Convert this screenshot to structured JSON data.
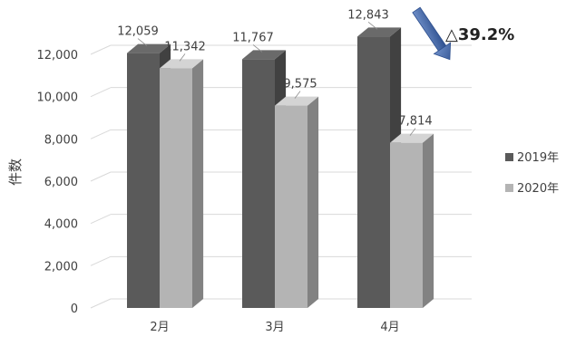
{
  "chart_data": {
    "type": "bar",
    "categories": [
      "2月",
      "3月",
      "4月"
    ],
    "series": [
      {
        "name": "2019年",
        "values": [
          12059,
          11767,
          12843
        ],
        "color": "#5a5a5a"
      },
      {
        "name": "2020年",
        "values": [
          11342,
          9575,
          7814
        ],
        "color": "#b4b4b4"
      }
    ],
    "value_labels": [
      [
        "12,059",
        "11,767",
        "12,843"
      ],
      [
        "11,342",
        "9,575",
        "7,814"
      ]
    ],
    "ylabel": "件数",
    "yticks": [
      "0",
      "2,000",
      "4,000",
      "6,000",
      "8,000",
      "10,000",
      "12,000"
    ],
    "ylim": [
      0,
      12000
    ],
    "grid": true,
    "legend_position": "right",
    "annotation": {
      "text": "△39.2%",
      "arrow_color": "#3b5fa0"
    }
  }
}
